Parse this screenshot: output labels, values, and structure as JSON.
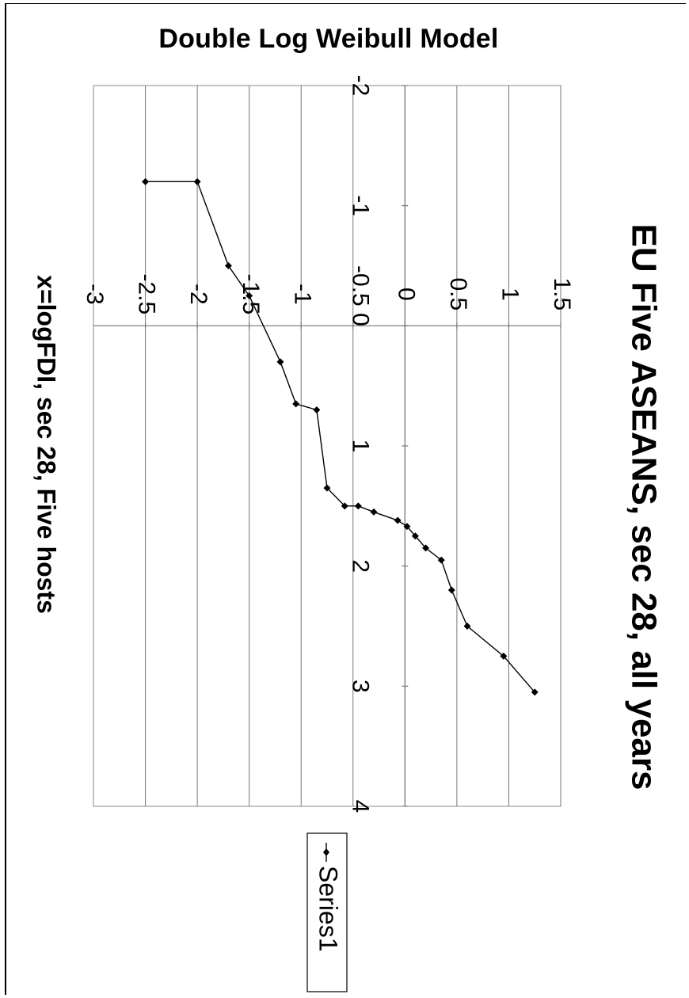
{
  "page": {
    "header": "Double Log Weibull Model"
  },
  "chart_data": {
    "type": "line",
    "title": "EU Five ASEANS, sec 28, all years",
    "xlabel": "x=logFDI, sec 28, Five hosts",
    "ylabel": "",
    "xlim": [
      -2,
      4
    ],
    "ylim": [
      -3,
      1.5
    ],
    "x_ticks": [
      "-2",
      "-1",
      "-0.5 0",
      "1",
      "2",
      "3",
      "4"
    ],
    "y_ticks": [
      "1.5",
      "1",
      "0.5",
      "0",
      "-1",
      "-1.5",
      "-2",
      "-2.5",
      "-3"
    ],
    "grid": true,
    "legend_position": "right",
    "series": [
      {
        "name": "Series1",
        "marker": "diamond",
        "x": [
          -1.2,
          -1.2,
          -0.5,
          -0.25,
          0.3,
          0.65,
          0.7,
          1.35,
          1.5,
          1.5,
          1.55,
          1.62,
          1.67,
          1.75,
          1.85,
          1.95,
          2.2,
          2.5,
          2.75,
          3.05
        ],
        "y": [
          -2.5,
          -2.0,
          -1.7,
          -1.5,
          -1.2,
          -1.05,
          -0.85,
          -0.75,
          -0.58,
          -0.45,
          -0.3,
          -0.07,
          0.02,
          0.1,
          0.2,
          0.35,
          0.45,
          0.6,
          0.95,
          1.25
        ]
      }
    ]
  }
}
